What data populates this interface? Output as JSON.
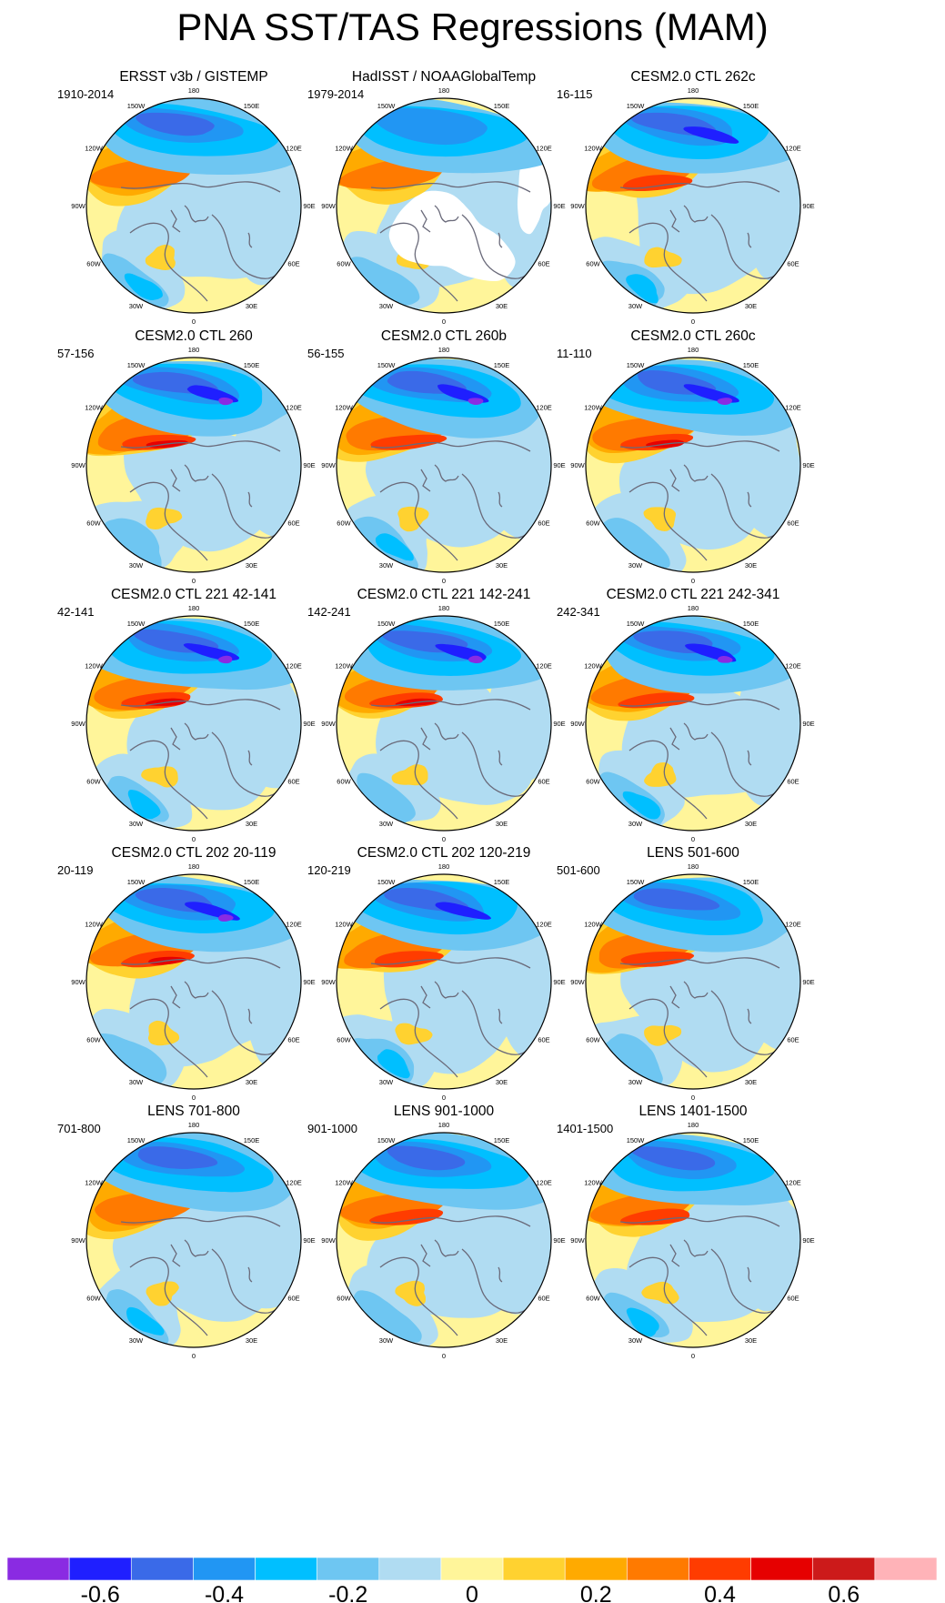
{
  "title": "PNA SST/TAS Regressions (MAM)",
  "chart_data": {
    "type": "heatmap",
    "projection": "north-polar-stereographic",
    "variable": "SST/TAS regression onto PNA index",
    "season": "MAM",
    "longitude_labels": [
      "180",
      "150E",
      "120E",
      "90E",
      "60E",
      "30E",
      "0",
      "30W",
      "60W",
      "90W",
      "120W",
      "150W"
    ],
    "panels": [
      {
        "title": "ERSST v3b / GISTEMP",
        "period": "1910-2014"
      },
      {
        "title": "HadISST / NOAAGlobalTemp",
        "period": "1979-2014"
      },
      {
        "title": "CESM2.0 CTL 262c",
        "period": "16-115"
      },
      {
        "title": "CESM2.0 CTL 260",
        "period": "57-156"
      },
      {
        "title": "CESM2.0 CTL 260b",
        "period": "56-155"
      },
      {
        "title": "CESM2.0 CTL 260c",
        "period": "11-110"
      },
      {
        "title": "CESM2.0 CTL 221 42-141",
        "period": "42-141"
      },
      {
        "title": "CESM2.0 CTL 221 142-241",
        "period": "142-241"
      },
      {
        "title": "CESM2.0 CTL 221 242-341",
        "period": "242-341"
      },
      {
        "title": "CESM2.0 CTL 202 20-119",
        "period": "20-119"
      },
      {
        "title": "CESM2.0 CTL 202 120-219",
        "period": "120-219"
      },
      {
        "title": "LENS 501-600",
        "period": "501-600"
      },
      {
        "title": "LENS 701-800",
        "period": "701-800"
      },
      {
        "title": "LENS 901-1000",
        "period": "901-1000"
      },
      {
        "title": "LENS 1401-1500",
        "period": "1401-1500"
      }
    ],
    "colorbar": {
      "levels": [
        -0.7,
        -0.6,
        -0.5,
        -0.4,
        -0.3,
        -0.2,
        -0.1,
        0,
        0.1,
        0.2,
        0.3,
        0.4,
        0.5,
        0.6,
        0.7
      ],
      "tick_labels": [
        "-0.6",
        "-0.4",
        "-0.2",
        "0",
        "0.2",
        "0.4",
        "0.6"
      ],
      "tick_values": [
        -0.6,
        -0.4,
        -0.2,
        0,
        0.2,
        0.4,
        0.6
      ],
      "colors": [
        "#8a2be2",
        "#1f1fff",
        "#3a6ae8",
        "#2196f3",
        "#00bfff",
        "#6ec6f2",
        "#b0dcf2",
        "#fff59a",
        "#ffd230",
        "#ffaa00",
        "#ff7a00",
        "#ff3c00",
        "#e60000",
        "#cc1a1a",
        "#ffb3b8"
      ]
    }
  }
}
